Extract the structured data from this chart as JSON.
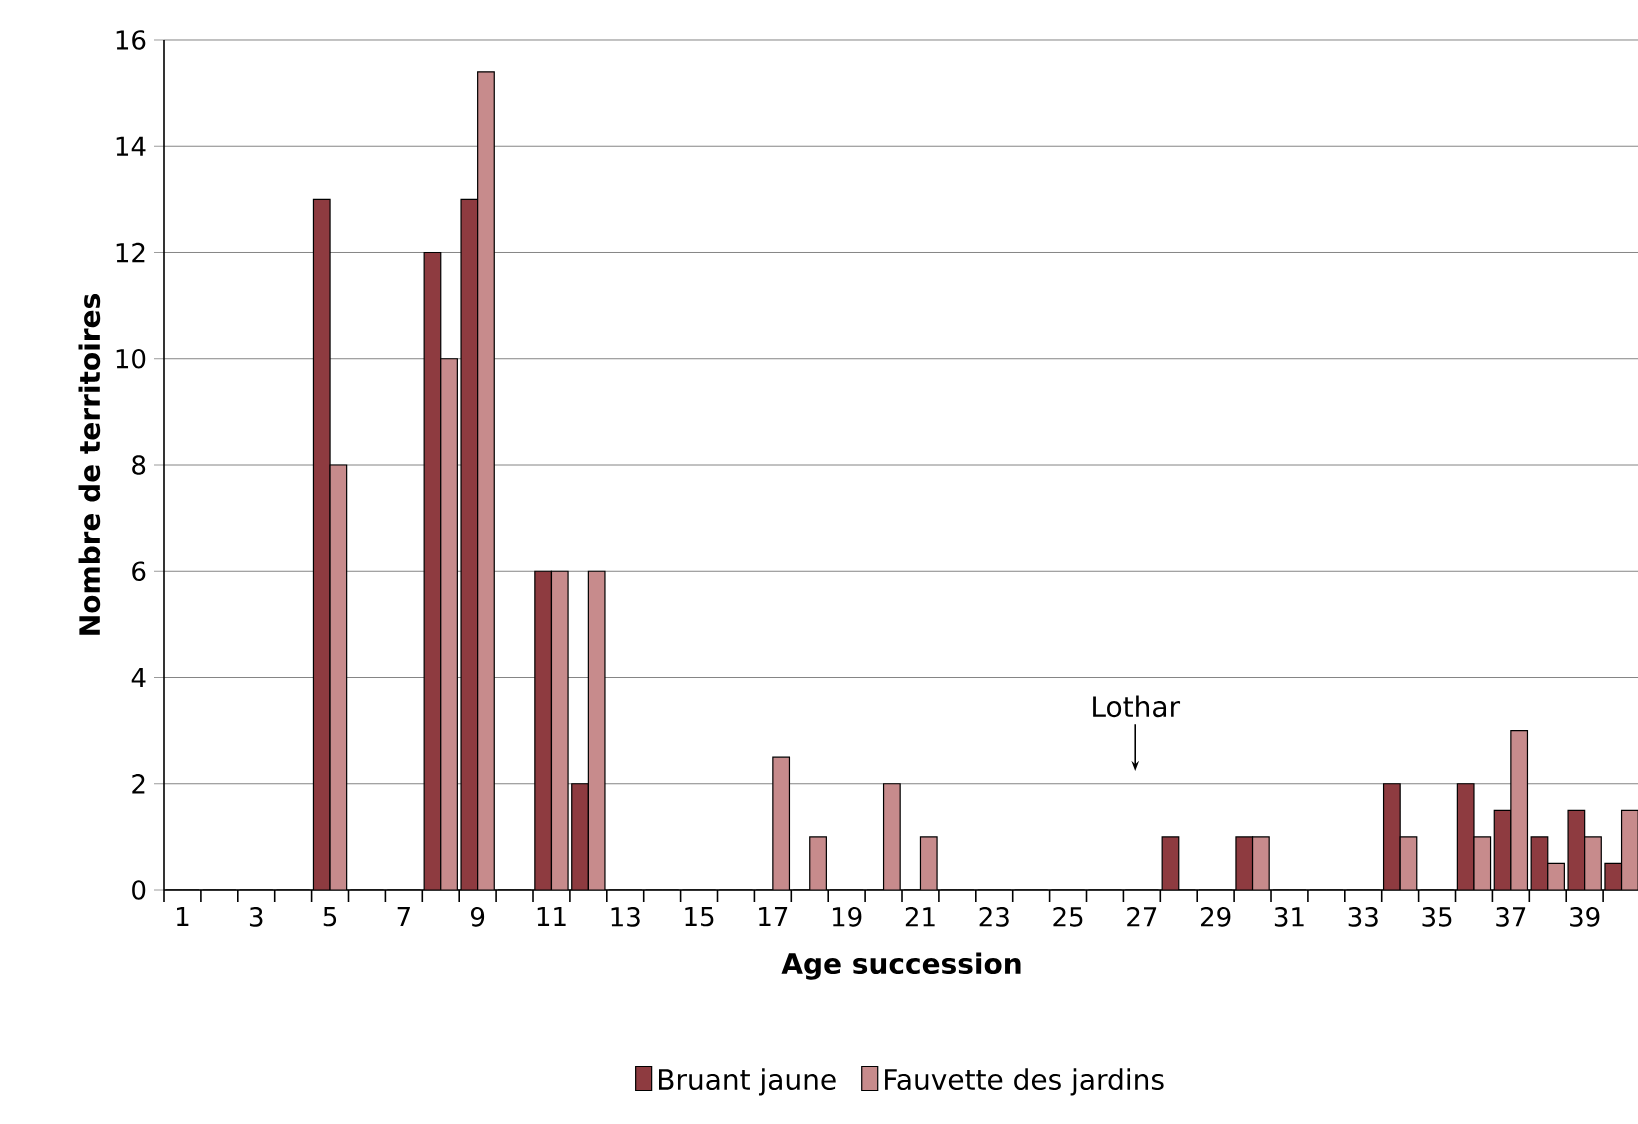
{
  "chart_data": {
    "type": "bar",
    "xlabel": "Age succession",
    "ylabel": "Nombre de territoires",
    "categories": [
      "1",
      null,
      "3",
      null,
      "5",
      null,
      "7",
      null,
      "9",
      null,
      "11",
      null,
      "13",
      null,
      "15",
      null,
      "17",
      null,
      "19",
      null,
      "21",
      null,
      "23",
      null,
      "25",
      null,
      "27",
      null,
      "29",
      null,
      "31",
      null,
      "33",
      null,
      "35",
      null,
      "37",
      null,
      "39",
      null
    ],
    "series": [
      {
        "name": "Bruant jaune",
        "color": "#8e3b40",
        "values": [
          0,
          0,
          0,
          0,
          13,
          0,
          0,
          12,
          13,
          0,
          6,
          2,
          0,
          0,
          0,
          0,
          0,
          0,
          0,
          0,
          0,
          0,
          0,
          0,
          0,
          0,
          0,
          1,
          0,
          1,
          0,
          0,
          0,
          2,
          0,
          2,
          1.5,
          1,
          1.5,
          0.5
        ]
      },
      {
        "name": "Fauvette des jardins",
        "color": "#c78b8c",
        "values": [
          0,
          0,
          0,
          0,
          8,
          0,
          0,
          10,
          15.4,
          0,
          6,
          6,
          0,
          0,
          0,
          0,
          2.5,
          1,
          0,
          2,
          1,
          0,
          0,
          0,
          0,
          0,
          0,
          0,
          0,
          1,
          0,
          0,
          0,
          1,
          0,
          1,
          3,
          0.5,
          1,
          1.5
        ]
      }
    ],
    "ylim": [
      0,
      16
    ],
    "yticks": [
      0,
      2,
      4,
      6,
      8,
      10,
      12,
      14,
      16
    ],
    "grid": "y",
    "legend": "bottom",
    "annotations": [
      "Lothar"
    ]
  }
}
